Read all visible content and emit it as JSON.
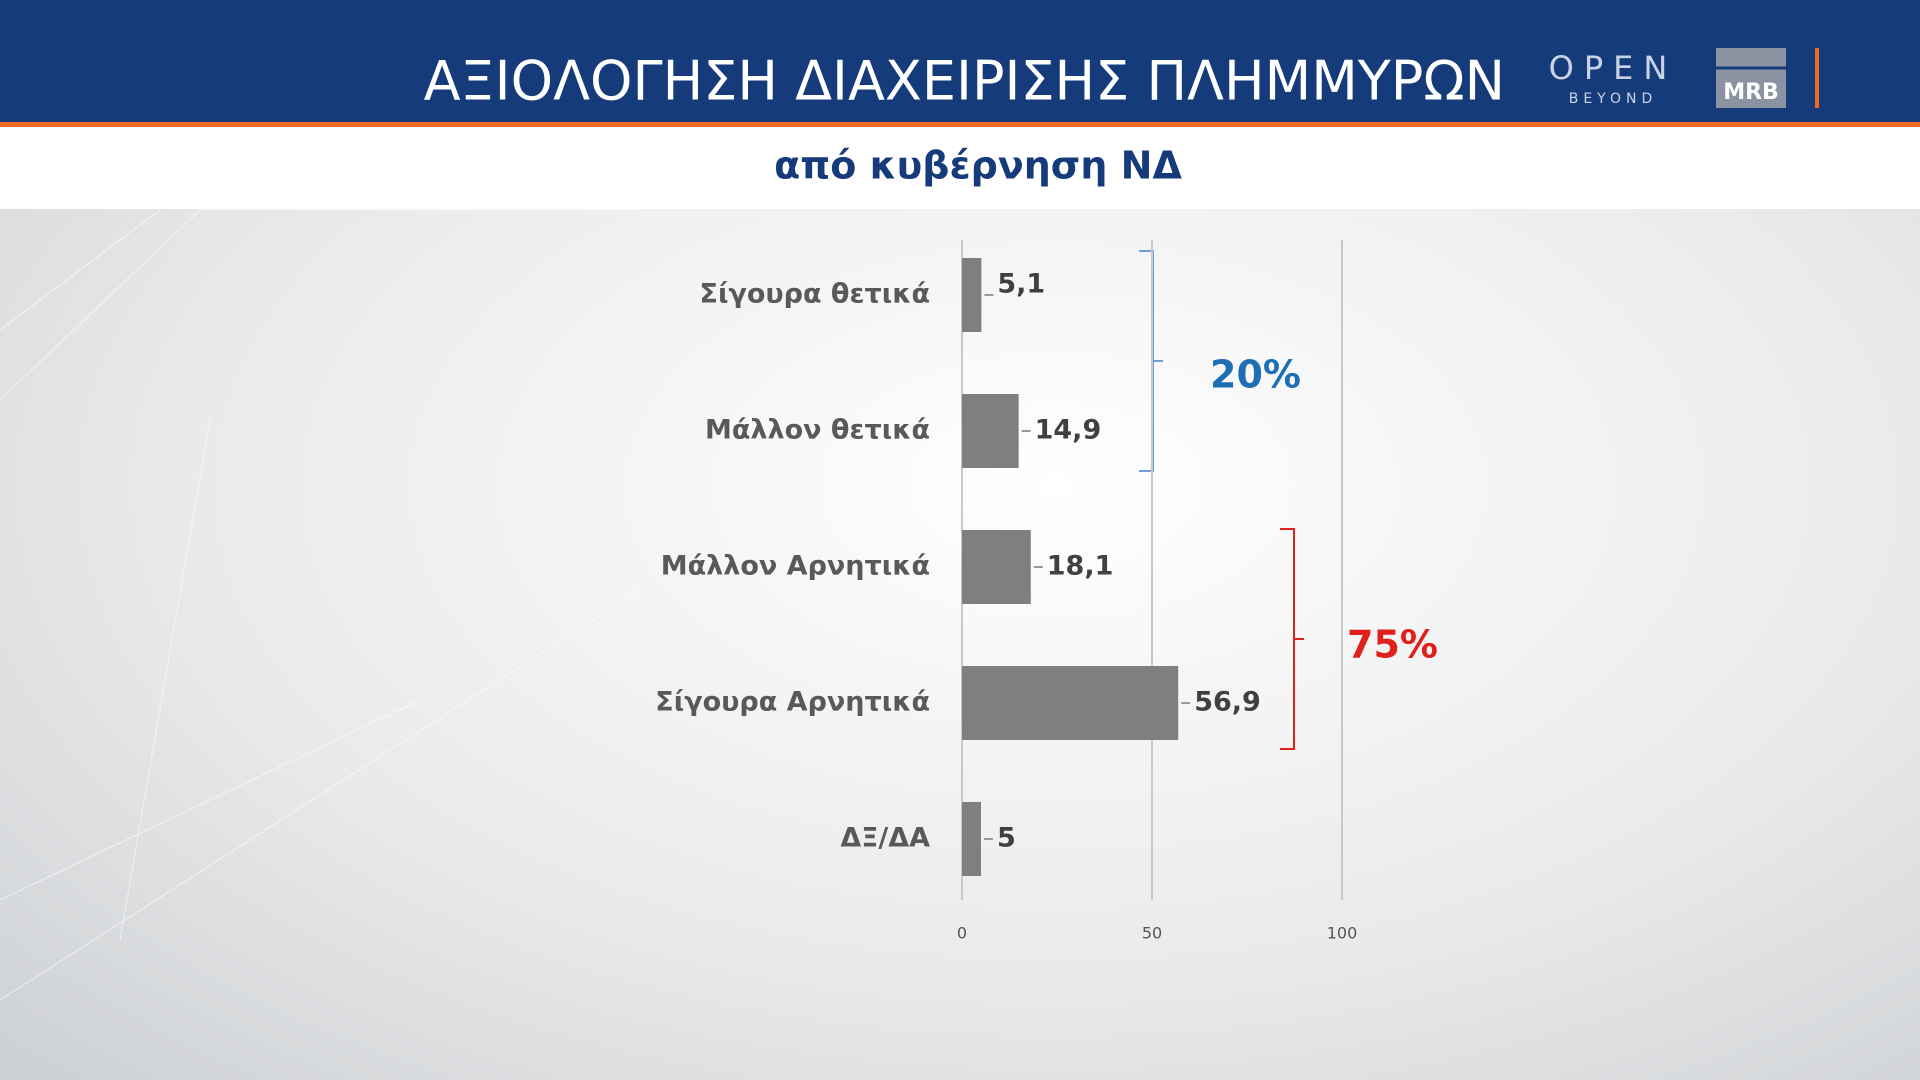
{
  "header": {
    "logo_open": "OPEN",
    "logo_beyond": "BEYOND",
    "logo_mrb": "MRB"
  },
  "chart_data": {
    "type": "bar",
    "orientation": "horizontal",
    "title": "ΑΞΙΟΛΟΓΗΣΗ ΔΙΑΧΕΙΡΙΣΗΣ ΠΛΗΜΜΥΡΩΝ",
    "subtitle": "από κυβέρνηση ΝΔ",
    "categories": [
      "Σίγουρα θετικά",
      "Μάλλον θετικά",
      "Μάλλον Αρνητικά",
      "Σίγουρα Αρνητικά",
      "ΔΞ/ΔΑ"
    ],
    "values": [
      5.1,
      14.9,
      18.1,
      56.9,
      5
    ],
    "value_labels": [
      "5,1",
      "14,9",
      "18,1",
      "56,9",
      "5"
    ],
    "color": "#7f7f7f",
    "xlim": [
      0,
      100
    ],
    "xticks": [
      0,
      50,
      100
    ],
    "grid": true,
    "annotations": [
      {
        "text": "20%",
        "color": "#1f6fb5"
      },
      {
        "text": "75%",
        "color": "#e0201b"
      }
    ]
  }
}
